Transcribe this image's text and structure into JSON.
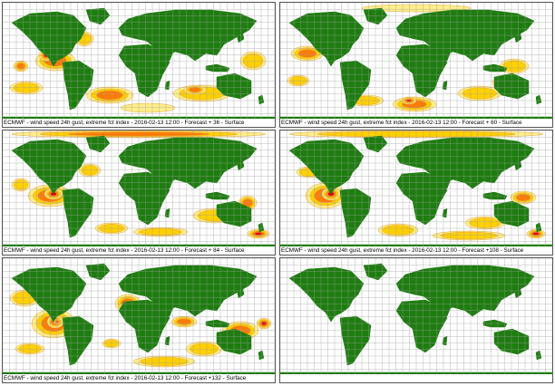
{
  "colors": {
    "land": "#1e7d10",
    "grid": "#9e9e9e",
    "ocean": "#ffffff",
    "contour": "#e8a640",
    "level1": "#ffee8a",
    "level2": "#ffd000",
    "level3": "#ff7a00",
    "level4": "#e80000",
    "level5": "#9a0000"
  },
  "panels": [
    {
      "caption": "ECMWF - wind speed 24h gust, extreme fct index - 2016-02-13 12:00 - Forecast + 36 - Surface",
      "has_field": true
    },
    {
      "caption": "ECMWF - wind speed 24h gust, extreme fct index - 2016-02-13 12:00 - Forecast + 60 - Surface",
      "has_field": true
    },
    {
      "caption": "ECMWF - wind speed 24h gust, extreme fct index - 2016-02-13 12:00 - Forecast + 84 - Surface",
      "has_field": true
    },
    {
      "caption": "ECMWF - wind speed 24h gust, extreme fct index - 2016-02-13 12:00 - Forecast +108 - Surface",
      "has_field": true
    },
    {
      "caption": "ECMWF - wind speed 24h gust, extreme fct index - 2016-02-13 12:00 - Forecast +132 - Surface",
      "has_field": true
    },
    {
      "caption": "",
      "has_field": false
    }
  ]
}
